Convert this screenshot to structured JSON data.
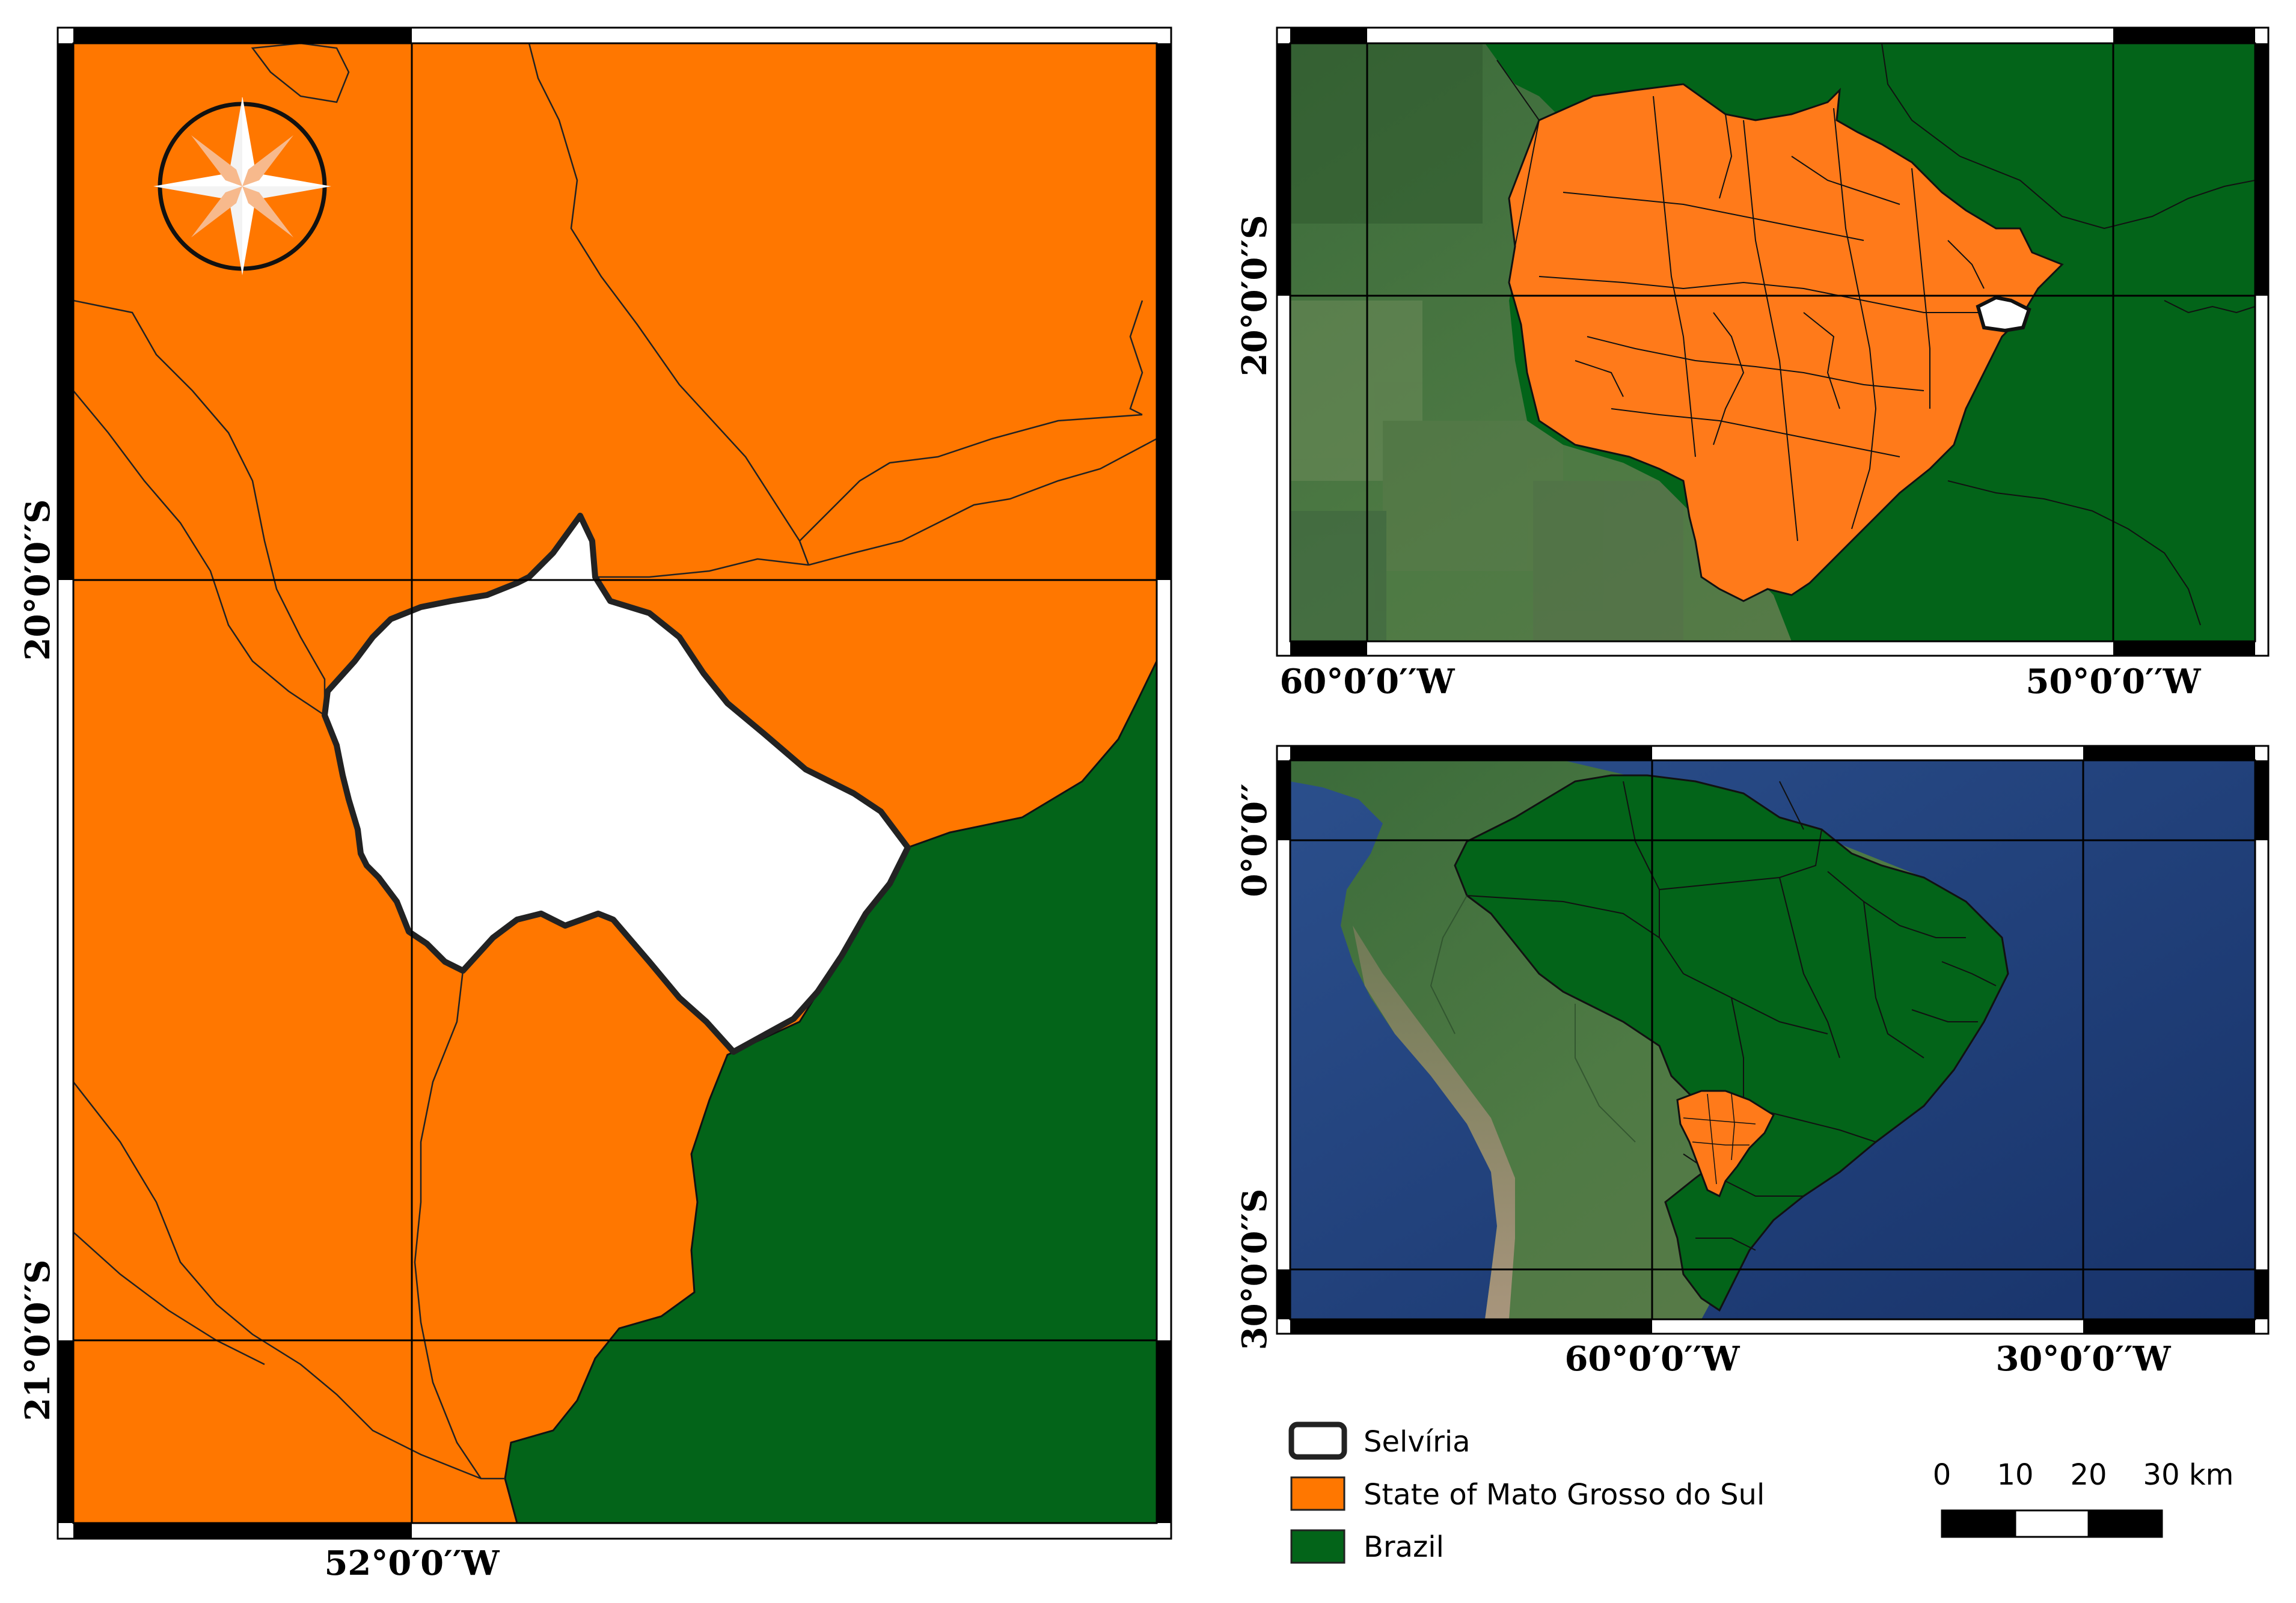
{
  "main_map": {
    "lat_labels": [
      "20°0′0′′S",
      "21°0′0′′S"
    ],
    "lon_labels": [
      "52°0′0′′W"
    ]
  },
  "inset_state": {
    "lat_labels": [
      "20°0′0′′S"
    ],
    "lon_labels": [
      "60°0′0′′W",
      "50°0′0′′W"
    ]
  },
  "inset_continent": {
    "lat_labels": [
      "0°0′0′′",
      "30°0′0′′S"
    ],
    "lon_labels": [
      "60°0′0′′W",
      "30°0′0′′W"
    ]
  },
  "legend": {
    "items": [
      {
        "label": "Selvíria",
        "color": "#ffffff",
        "icon": "legend-swatch-selviria"
      },
      {
        "label": "State of Mato Grosso do Sul",
        "color": "#ff7700",
        "icon": "legend-swatch-state"
      },
      {
        "label": "Brazil",
        "color": "#036419",
        "icon": "legend-swatch-brazil"
      }
    ]
  },
  "scale_bar": {
    "ticks": [
      "0",
      "10",
      "20",
      "30 km"
    ]
  },
  "north_arrow": {
    "icon": "compass-rose-icon"
  },
  "colors": {
    "state": "#ff7700",
    "brazil": "#036419",
    "selviria": "#ffffff",
    "ocean": "#1d3f7a",
    "land_satellite": "#3f6a35"
  }
}
